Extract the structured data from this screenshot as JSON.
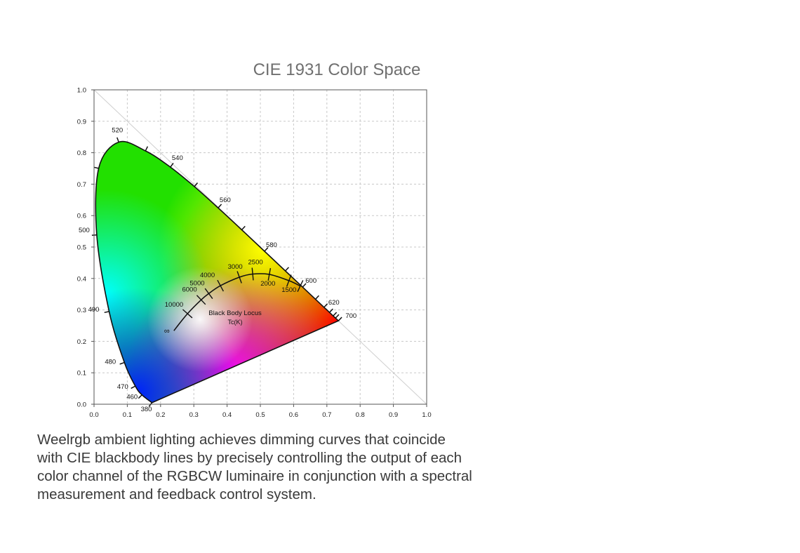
{
  "chart_data": {
    "type": "scatter",
    "title": "CIE 1931 Color Space",
    "xlabel": "",
    "ylabel": "",
    "xlim": [
      0,
      1
    ],
    "ylim": [
      0,
      1
    ],
    "grid": true,
    "x_ticks": [
      "0.0",
      "0.1",
      "0.2",
      "0.3",
      "0.4",
      "0.5",
      "0.6",
      "0.7",
      "0.8",
      "0.9",
      "1.0"
    ],
    "y_ticks": [
      "0.0",
      "0.1",
      "0.2",
      "0.3",
      "0.4",
      "0.5",
      "0.6",
      "0.7",
      "0.8",
      "0.9",
      "1.0"
    ],
    "spectral_locus": {
      "name": "",
      "points": [
        {
          "nm": "380",
          "x": 0.1741,
          "y": 0.005
        },
        {
          "nm": "460",
          "x": 0.144,
          "y": 0.0297
        },
        {
          "nm": "470",
          "x": 0.1241,
          "y": 0.0578
        },
        {
          "nm": "480",
          "x": 0.0913,
          "y": 0.1327
        },
        {
          "nm": "490",
          "x": 0.0454,
          "y": 0.295
        },
        {
          "nm": "500",
          "x": 0.0082,
          "y": 0.5384
        },
        {
          "nm": "",
          "x": 0.0139,
          "y": 0.7502
        },
        {
          "nm": "520",
          "x": 0.0743,
          "y": 0.8338
        },
        {
          "nm": "",
          "x": 0.1547,
          "y": 0.8059
        },
        {
          "nm": "540",
          "x": 0.2296,
          "y": 0.7543
        },
        {
          "nm": "",
          "x": 0.3016,
          "y": 0.6923
        },
        {
          "nm": "560",
          "x": 0.3731,
          "y": 0.6245
        },
        {
          "nm": "",
          "x": 0.4441,
          "y": 0.5547
        },
        {
          "nm": "580",
          "x": 0.5125,
          "y": 0.4866
        },
        {
          "nm": "",
          "x": 0.5752,
          "y": 0.4242
        },
        {
          "nm": "600",
          "x": 0.627,
          "y": 0.3725
        },
        {
          "nm": "",
          "x": 0.6658,
          "y": 0.334
        },
        {
          "nm": "620",
          "x": 0.6915,
          "y": 0.3083
        },
        {
          "nm": "",
          "x": 0.7079,
          "y": 0.292
        },
        {
          "nm": "",
          "x": 0.719,
          "y": 0.2809
        },
        {
          "nm": "",
          "x": 0.726,
          "y": 0.274
        },
        {
          "nm": "700",
          "x": 0.7347,
          "y": 0.2653
        }
      ]
    },
    "blackbody_locus": {
      "name": "Black Body Locus",
      "unit_label": "Tc(K)",
      "points": [
        {
          "label": "∞",
          "x": 0.24,
          "y": 0.234
        },
        {
          "label": "10000",
          "x": 0.281,
          "y": 0.288
        },
        {
          "label": "6000",
          "x": 0.322,
          "y": 0.332
        },
        {
          "label": "5000",
          "x": 0.345,
          "y": 0.352
        },
        {
          "label": "4000",
          "x": 0.38,
          "y": 0.377
        },
        {
          "label": "3000",
          "x": 0.437,
          "y": 0.404
        },
        {
          "label": "2500",
          "x": 0.477,
          "y": 0.414
        },
        {
          "label": "2000",
          "x": 0.527,
          "y": 0.413
        },
        {
          "label": "1500",
          "x": 0.586,
          "y": 0.393
        },
        {
          "label": "",
          "x": 0.62,
          "y": 0.376
        }
      ]
    },
    "annotations": [
      "Black Body Locus",
      "Tc(K)"
    ]
  },
  "caption_lines": [
    "Weelrgb ambient lighting achieves dimming curves that coincide",
    "with CIE blackbody lines by precisely controlling the output of each",
    "color channel of the RGBCW luminaire in conjunction with a spectral",
    "measurement and feedback control system."
  ]
}
